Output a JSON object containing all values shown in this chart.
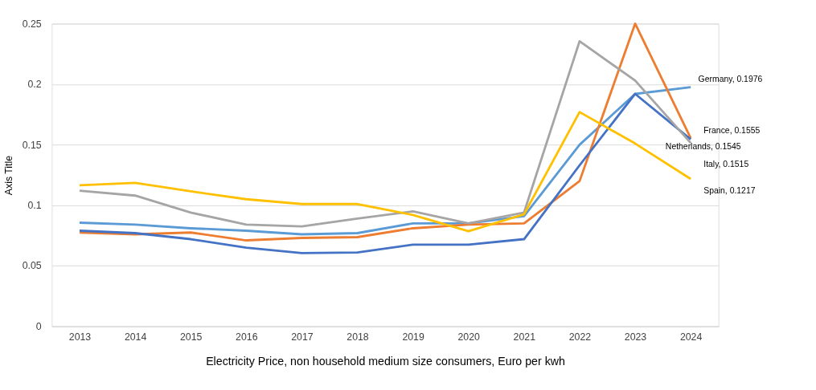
{
  "chart_data": {
    "type": "line",
    "xlabel": "Electricity Price, non household medium size consumers, Euro per kwh",
    "ylabel": "Axis Title",
    "categories": [
      "2013",
      "2014",
      "2015",
      "2016",
      "2017",
      "2018",
      "2019",
      "2020",
      "2021",
      "2022",
      "2023",
      "2024"
    ],
    "series": [
      {
        "color": "#5b9bd5",
        "values": [
          0.0856,
          0.084,
          0.081,
          0.079,
          0.076,
          0.077,
          0.085,
          0.085,
          0.091,
          0.15,
          0.192,
          0.1976
        ],
        "value_labels": [
          null,
          null,
          null,
          null,
          null,
          null,
          null,
          null,
          null,
          null,
          null,
          "Germany, 0.1976"
        ]
      },
      {
        "color": "#ed7d31",
        "values": [
          0.0775,
          0.076,
          0.0775,
          0.071,
          0.073,
          0.0737,
          0.081,
          0.084,
          0.085,
          0.12,
          0.25,
          0.1555
        ],
        "value_labels": [
          null,
          null,
          null,
          null,
          null,
          null,
          null,
          null,
          null,
          null,
          null,
          "France, 0.1555"
        ]
      },
      {
        "color": "#4472c4",
        "values": [
          0.079,
          0.077,
          0.072,
          0.065,
          0.0605,
          0.061,
          0.0675,
          0.0675,
          0.072,
          0.133,
          0.192,
          0.1545
        ],
        "value_labels": [
          null,
          null,
          null,
          null,
          null,
          null,
          null,
          null,
          null,
          null,
          null,
          "Netherlands, 0.1545"
        ]
      },
      {
        "color": "#a5a5a5",
        "values": [
          0.112,
          0.108,
          0.094,
          0.084,
          0.0825,
          0.089,
          0.095,
          0.085,
          0.094,
          0.2355,
          0.203,
          0.1515
        ],
        "value_labels": [
          null,
          null,
          null,
          null,
          null,
          null,
          null,
          null,
          null,
          null,
          null,
          "Italy, 0.1515"
        ]
      },
      {
        "color": "#ffc000",
        "values": [
          0.1165,
          0.1185,
          0.1115,
          0.105,
          0.101,
          0.101,
          0.092,
          0.0785,
          0.0925,
          0.177,
          0.151,
          0.1217
        ],
        "value_labels": [
          null,
          null,
          null,
          null,
          null,
          null,
          null,
          null,
          null,
          null,
          null,
          "Spain, 0.1217"
        ]
      }
    ],
    "ylim": [
      0,
      0.25
    ],
    "yticks": [
      0,
      0.05,
      0.1,
      0.15,
      0.2,
      0.25
    ],
    "grid": "y",
    "legend": false,
    "marker": "none",
    "line_style": "solid"
  }
}
